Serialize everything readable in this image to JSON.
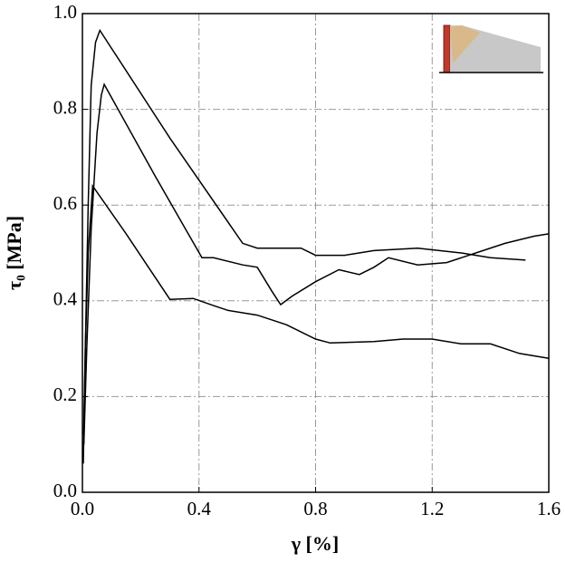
{
  "chart_data": {
    "type": "line",
    "x_label": "γ [%]",
    "y_label": "τ₀ [MPa]",
    "xlim": [
      0,
      1.6
    ],
    "ylim": [
      0,
      1
    ],
    "xticks": [
      {
        "value": 0,
        "label": "0.0"
      },
      0.4,
      0.8,
      1.2,
      1.6
    ],
    "yticks": [
      {
        "value": 0,
        "label": "0.0"
      },
      0.2,
      0.4,
      0.6,
      0.8,
      {
        "value": 1,
        "label": "1.0"
      }
    ],
    "grid": true,
    "series": [
      {
        "color": "#000000",
        "x": [
          0.003,
          0.01,
          0.02,
          0.03,
          0.045,
          0.06,
          0.3,
          0.55,
          0.6,
          0.75,
          0.8,
          0.9,
          1.0,
          1.15,
          1.3,
          1.4,
          1.52
        ],
        "values": [
          0.06,
          0.3,
          0.6,
          0.85,
          0.94,
          0.965,
          0.74,
          0.52,
          0.51,
          0.51,
          0.495,
          0.495,
          0.505,
          0.51,
          0.5,
          0.49,
          0.485
        ]
      },
      {
        "color": "#000000",
        "x": [
          0.005,
          0.015,
          0.03,
          0.05,
          0.065,
          0.075,
          0.25,
          0.41,
          0.45,
          0.55,
          0.6,
          0.65,
          0.68,
          0.72,
          0.8,
          0.88,
          0.95,
          1.0,
          1.05,
          1.15,
          1.25,
          1.35,
          1.45,
          1.55,
          1.6
        ],
        "values": [
          0.1,
          0.3,
          0.55,
          0.75,
          0.83,
          0.852,
          0.66,
          0.49,
          0.49,
          0.475,
          0.47,
          0.42,
          0.392,
          0.41,
          0.44,
          0.465,
          0.455,
          0.47,
          0.49,
          0.475,
          0.48,
          0.5,
          0.52,
          0.535,
          0.54
        ]
      },
      {
        "color": "#000000",
        "x": [
          0.004,
          0.01,
          0.02,
          0.035,
          0.15,
          0.3,
          0.38,
          0.45,
          0.5,
          0.6,
          0.7,
          0.8,
          0.85,
          1.0,
          1.1,
          1.2,
          1.3,
          1.4,
          1.5,
          1.6
        ],
        "values": [
          0.12,
          0.3,
          0.5,
          0.64,
          0.54,
          0.403,
          0.405,
          0.39,
          0.38,
          0.37,
          0.35,
          0.32,
          0.312,
          0.315,
          0.32,
          0.32,
          0.31,
          0.31,
          0.29,
          0.28
        ]
      }
    ]
  }
}
